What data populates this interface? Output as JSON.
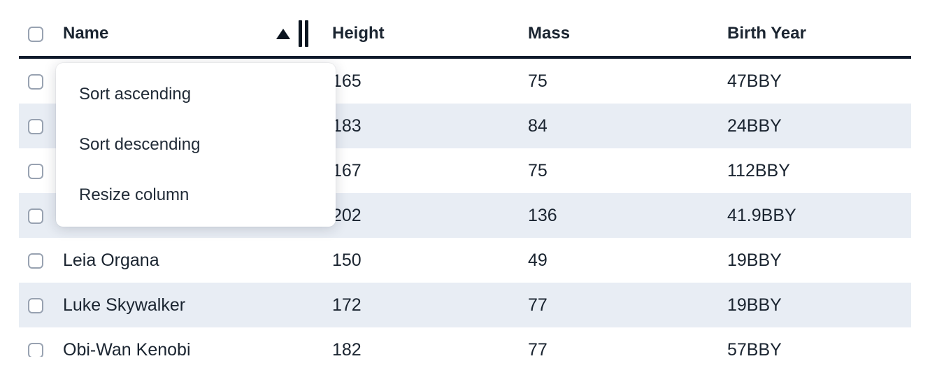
{
  "table": {
    "columns": [
      {
        "label": "Name"
      },
      {
        "label": "Height"
      },
      {
        "label": "Mass"
      },
      {
        "label": "Birth Year"
      }
    ],
    "sort": {
      "column": "Name",
      "direction_icon": "triangle-up"
    },
    "rows": [
      {
        "name": "",
        "height": "165",
        "mass": "75",
        "birth_year": "47BBY"
      },
      {
        "name": "",
        "height": "183",
        "mass": "84",
        "birth_year": "24BBY"
      },
      {
        "name": "",
        "height": "167",
        "mass": "75",
        "birth_year": "112BBY"
      },
      {
        "name": "",
        "height": "202",
        "mass": "136",
        "birth_year": "41.9BBY"
      },
      {
        "name": "Leia Organa",
        "height": "150",
        "mass": "49",
        "birth_year": "19BBY"
      },
      {
        "name": "Luke Skywalker",
        "height": "172",
        "mass": "77",
        "birth_year": "19BBY"
      },
      {
        "name": "Obi-Wan Kenobi",
        "height": "182",
        "mass": "77",
        "birth_year": "57BBY"
      }
    ]
  },
  "context_menu": {
    "items": [
      {
        "label": "Sort ascending"
      },
      {
        "label": "Sort descending"
      },
      {
        "label": "Resize column"
      }
    ]
  },
  "colors": {
    "row_stripe": "#e8edf4",
    "header_border": "#101b2c",
    "text": "#1a2430",
    "checkbox_border": "#98a2b1"
  }
}
